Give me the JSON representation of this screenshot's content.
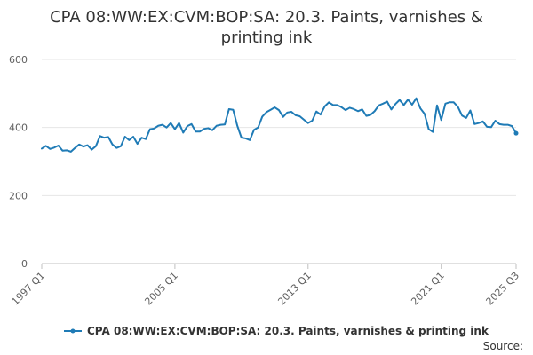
{
  "chart_data": {
    "type": "line",
    "title_lines": [
      "CPA 08:WW:EX:CVM:BOP:SA: 20.3. Paints, varnishes &",
      "printing ink"
    ],
    "xlabel": "",
    "ylabel": "",
    "ylim": [
      0,
      600
    ],
    "yticks": [
      0,
      200,
      400,
      600
    ],
    "x_start": "1997 Q1",
    "x_end": "2025 Q3",
    "xtick_labels": [
      {
        "label": "1997 Q1",
        "index": 0
      },
      {
        "label": "2005 Q1",
        "index": 32
      },
      {
        "label": "2013 Q1",
        "index": 64
      },
      {
        "label": "2021 Q1",
        "index": 96
      },
      {
        "label": "2025 Q3",
        "index": 114
      }
    ],
    "grid": "horizontal",
    "legend_position": "bottom",
    "series": [
      {
        "name": "CPA 08:WW:EX:CVM:BOP:SA: 20.3. Paints, varnishes & printing ink",
        "color": "#1f7bb6",
        "values": [
          338,
          346,
          337,
          341,
          347,
          332,
          333,
          329,
          340,
          350,
          344,
          348,
          335,
          345,
          375,
          370,
          372,
          350,
          340,
          345,
          373,
          363,
          373,
          352,
          370,
          366,
          395,
          397,
          405,
          408,
          400,
          413,
          395,
          413,
          385,
          404,
          410,
          388,
          388,
          396,
          398,
          392,
          405,
          408,
          409,
          454,
          452,
          405,
          370,
          368,
          363,
          393,
          400,
          432,
          445,
          452,
          459,
          451,
          431,
          444,
          446,
          436,
          433,
          423,
          413,
          420,
          447,
          438,
          462,
          474,
          466,
          466,
          460,
          451,
          458,
          454,
          448,
          453,
          434,
          437,
          448,
          465,
          470,
          476,
          453,
          469,
          481,
          466,
          482,
          467,
          486,
          456,
          440,
          395,
          387,
          465,
          422,
          470,
          474,
          474,
          461,
          435,
          428,
          450,
          410,
          413,
          418,
          402,
          401,
          420,
          410,
          408,
          408,
          404,
          383
        ]
      }
    ],
    "credit": "Source:"
  }
}
